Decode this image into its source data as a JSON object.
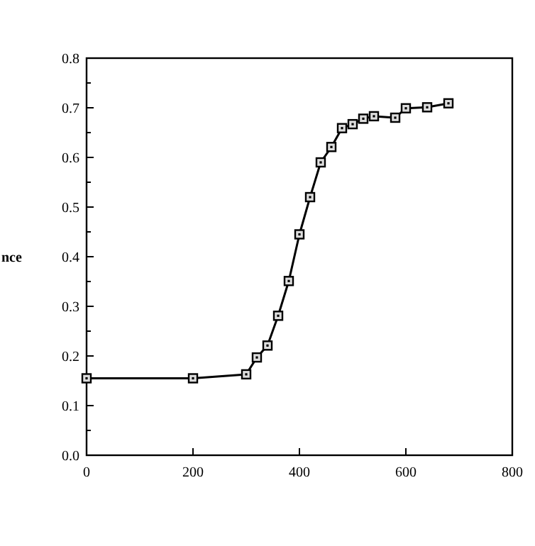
{
  "chart_data": {
    "type": "line",
    "ylabel": "nce",
    "x": [
      0,
      200,
      300,
      320,
      340,
      360,
      380,
      400,
      420,
      440,
      460,
      480,
      500,
      520,
      540,
      580,
      600,
      640,
      680
    ],
    "series": [
      {
        "color": "#000000",
        "values": [
          0.155,
          0.155,
          0.163,
          0.197,
          0.221,
          0.281,
          0.351,
          0.445,
          0.52,
          0.59,
          0.621,
          0.659,
          0.667,
          0.678,
          0.683,
          0.68,
          0.699,
          0.701,
          0.709
        ]
      }
    ],
    "xlim": [
      0,
      800
    ],
    "xticks": [
      0,
      200,
      400,
      600,
      800
    ],
    "ylim": [
      0,
      0.8
    ],
    "yticks": [
      {
        "value": 0,
        "label": "0.0"
      },
      {
        "value": 0.05,
        "label": null
      },
      0.1,
      {
        "value": 0.15,
        "label": null
      },
      0.2,
      {
        "value": 0.25,
        "label": null
      },
      0.3,
      {
        "value": 0.35,
        "label": null
      },
      0.4,
      {
        "value": 0.45,
        "label": null
      },
      0.5,
      {
        "value": 0.55,
        "label": null
      },
      0.6,
      {
        "value": 0.65,
        "label": null
      },
      0.7,
      {
        "value": 0.75,
        "label": null
      },
      0.8
    ],
    "marker": "square",
    "line_style": "solid",
    "grid": false
  }
}
